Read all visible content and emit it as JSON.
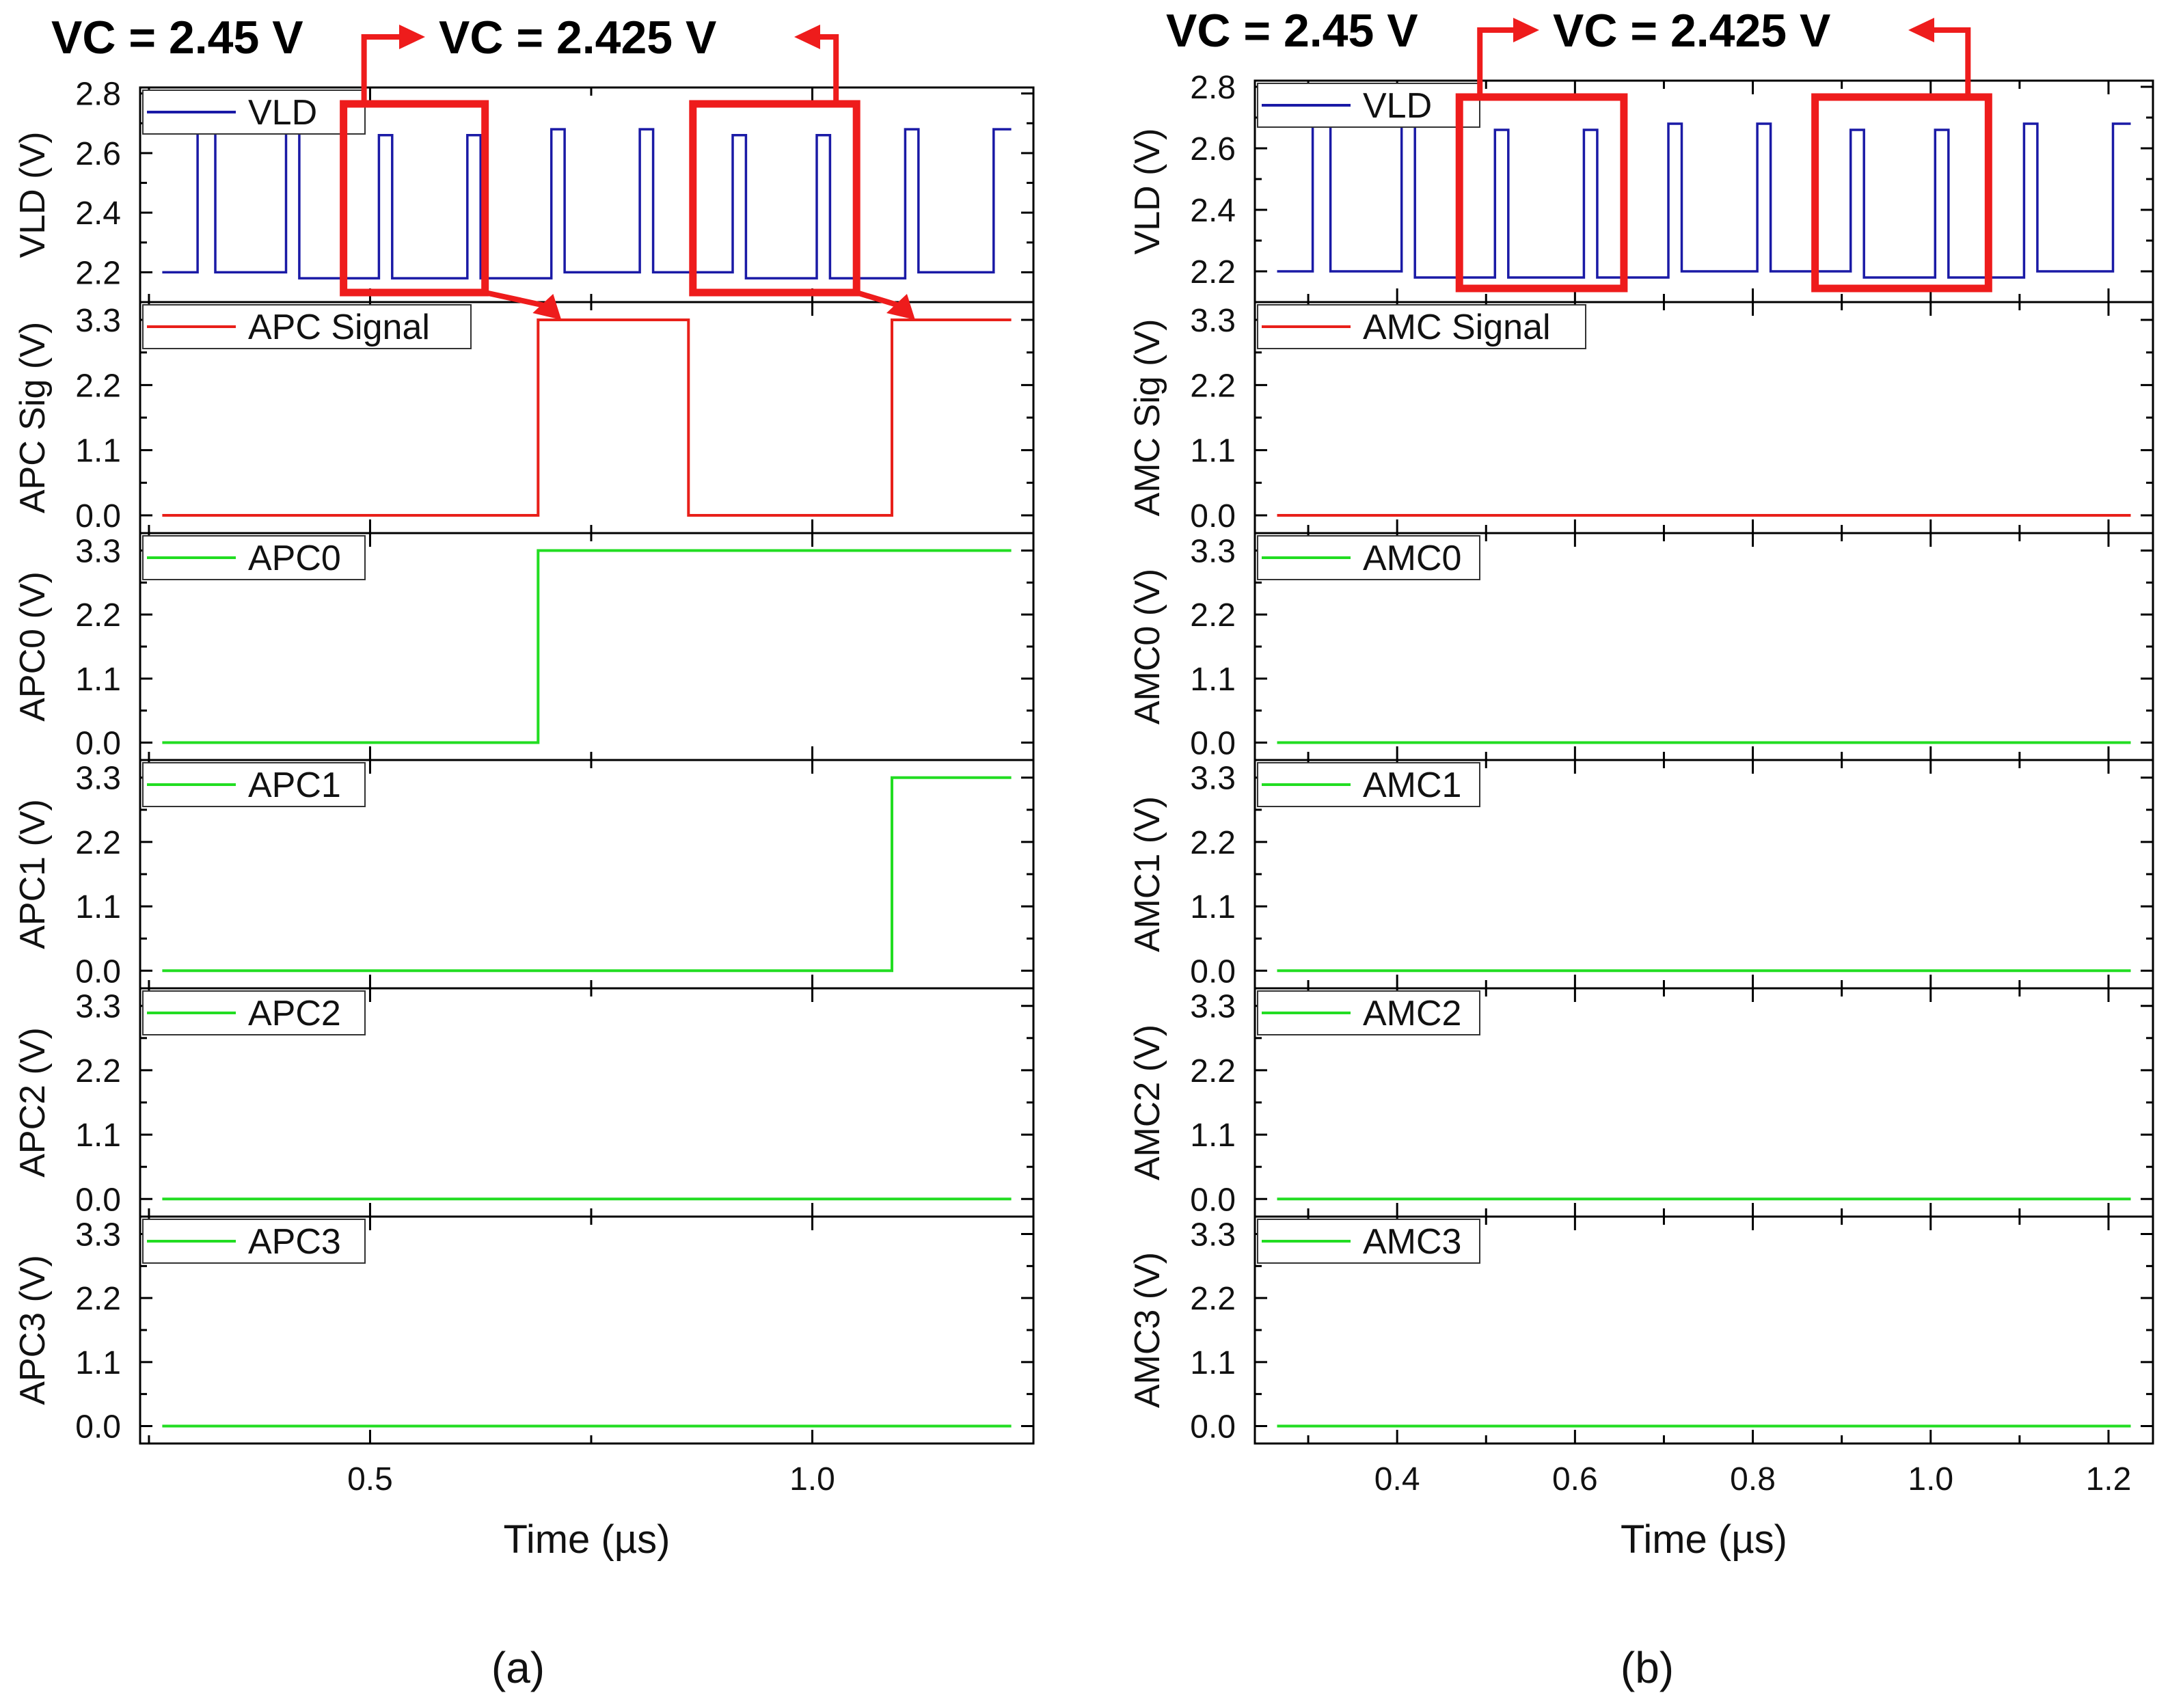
{
  "figure": {
    "colors": {
      "vld": "#1a1aa6",
      "signal": "#e8201a",
      "digital": "#22dd22",
      "highlight": "#ee1c1c",
      "axis": "#000000"
    }
  },
  "chart_data": [
    {
      "type": "line",
      "panel_label": "(a)",
      "annotation_left": "VC = 2.45 V",
      "annotation_right": "VC = 2.425 V",
      "xlabel": "Time (µs)",
      "xlim": [
        0.24,
        1.25
      ],
      "xticks": [
        0.5,
        1.0
      ],
      "xtick_labels": [
        "0.5",
        "1.0"
      ],
      "highlight_windows": [
        [
          0.47,
          0.63
        ],
        [
          0.865,
          1.05
        ]
      ],
      "subplots": [
        {
          "ylabel": "VLD (V)",
          "ylim": [
            2.1,
            2.82
          ],
          "yticks": [
            2.2,
            2.4,
            2.6,
            2.8
          ],
          "ytick_labels": [
            "2.2",
            "2.4",
            "2.6",
            "2.8"
          ],
          "legend": "VLD",
          "color_key": "vld",
          "x": [
            0.265,
            0.305,
            0.305,
            0.325,
            0.325,
            0.405,
            0.405,
            0.42,
            0.42,
            0.51,
            0.51,
            0.525,
            0.525,
            0.61,
            0.61,
            0.625,
            0.625,
            0.705,
            0.705,
            0.72,
            0.72,
            0.805,
            0.805,
            0.82,
            0.82,
            0.91,
            0.91,
            0.925,
            0.925,
            1.005,
            1.005,
            1.02,
            1.02,
            1.105,
            1.105,
            1.12,
            1.12,
            1.205,
            1.205,
            1.225
          ],
          "y": [
            2.2,
            2.2,
            2.68,
            2.68,
            2.2,
            2.2,
            2.68,
            2.68,
            2.18,
            2.18,
            2.66,
            2.66,
            2.18,
            2.18,
            2.66,
            2.66,
            2.18,
            2.18,
            2.68,
            2.68,
            2.2,
            2.2,
            2.68,
            2.68,
            2.2,
            2.2,
            2.66,
            2.66,
            2.18,
            2.18,
            2.66,
            2.66,
            2.18,
            2.18,
            2.68,
            2.68,
            2.2,
            2.2,
            2.68,
            2.68
          ]
        },
        {
          "ylabel": "APC Sig (V)",
          "ylim": [
            -0.3,
            3.6
          ],
          "yticks": [
            0.0,
            1.1,
            2.2,
            3.3
          ],
          "ytick_labels": [
            "0.0",
            "1.1",
            "2.2",
            "3.3"
          ],
          "legend": "APC Signal",
          "color_key": "signal",
          "x": [
            0.265,
            0.69,
            0.69,
            0.86,
            0.86,
            1.09,
            1.09,
            1.225
          ],
          "y": [
            0.0,
            0.0,
            3.3,
            3.3,
            0.0,
            0.0,
            3.3,
            3.3
          ]
        },
        {
          "ylabel": "APC0 (V)",
          "ylim": [
            -0.3,
            3.6
          ],
          "yticks": [
            0.0,
            1.1,
            2.2,
            3.3
          ],
          "ytick_labels": [
            "0.0",
            "1.1",
            "2.2",
            "3.3"
          ],
          "legend": "APC0",
          "color_key": "digital",
          "x": [
            0.265,
            0.69,
            0.69,
            1.225
          ],
          "y": [
            0.0,
            0.0,
            3.3,
            3.3
          ]
        },
        {
          "ylabel": "APC1 (V)",
          "ylim": [
            -0.3,
            3.6
          ],
          "yticks": [
            0.0,
            1.1,
            2.2,
            3.3
          ],
          "ytick_labels": [
            "0.0",
            "1.1",
            "2.2",
            "3.3"
          ],
          "legend": "APC1",
          "color_key": "digital",
          "x": [
            0.265,
            1.09,
            1.09,
            1.225
          ],
          "y": [
            0.0,
            0.0,
            3.3,
            3.3
          ]
        },
        {
          "ylabel": "APC2 (V)",
          "ylim": [
            -0.3,
            3.6
          ],
          "yticks": [
            0.0,
            1.1,
            2.2,
            3.3
          ],
          "ytick_labels": [
            "0.0",
            "1.1",
            "2.2",
            "3.3"
          ],
          "legend": "APC2",
          "color_key": "digital",
          "x": [
            0.265,
            1.225
          ],
          "y": [
            0.0,
            0.0
          ]
        },
        {
          "ylabel": "APC3 (V)",
          "ylim": [
            -0.3,
            3.6
          ],
          "yticks": [
            0.0,
            1.1,
            2.2,
            3.3
          ],
          "ytick_labels": [
            "0.0",
            "1.1",
            "2.2",
            "3.3"
          ],
          "legend": "APC3",
          "color_key": "digital",
          "x": [
            0.265,
            1.225
          ],
          "y": [
            0.0,
            0.0
          ]
        }
      ]
    },
    {
      "type": "line",
      "panel_label": "(b)",
      "annotation_left": "VC = 2.45 V",
      "annotation_right": "VC = 2.425 V",
      "xlabel": "Time (µs)",
      "xlim": [
        0.24,
        1.25
      ],
      "xticks": [
        0.4,
        0.6,
        0.8,
        1.0,
        1.2
      ],
      "xtick_labels": [
        "0.4",
        "0.6",
        "0.8",
        "1.0",
        "1.2"
      ],
      "highlight_windows": [
        [
          0.47,
          0.655
        ],
        [
          0.87,
          1.065
        ]
      ],
      "subplots": [
        {
          "ylabel": "VLD (V)",
          "ylim": [
            2.1,
            2.82
          ],
          "yticks": [
            2.2,
            2.4,
            2.6,
            2.8
          ],
          "ytick_labels": [
            "2.2",
            "2.4",
            "2.6",
            "2.8"
          ],
          "legend": "VLD",
          "color_key": "vld",
          "x": [
            0.265,
            0.305,
            0.305,
            0.325,
            0.325,
            0.405,
            0.405,
            0.42,
            0.42,
            0.51,
            0.51,
            0.525,
            0.525,
            0.61,
            0.61,
            0.625,
            0.625,
            0.705,
            0.705,
            0.72,
            0.72,
            0.805,
            0.805,
            0.82,
            0.82,
            0.91,
            0.91,
            0.925,
            0.925,
            1.005,
            1.005,
            1.02,
            1.02,
            1.105,
            1.105,
            1.12,
            1.12,
            1.205,
            1.205,
            1.225
          ],
          "y": [
            2.2,
            2.2,
            2.68,
            2.68,
            2.2,
            2.2,
            2.68,
            2.68,
            2.18,
            2.18,
            2.66,
            2.66,
            2.18,
            2.18,
            2.66,
            2.66,
            2.18,
            2.18,
            2.68,
            2.68,
            2.2,
            2.2,
            2.68,
            2.68,
            2.2,
            2.2,
            2.66,
            2.66,
            2.18,
            2.18,
            2.66,
            2.66,
            2.18,
            2.18,
            2.68,
            2.68,
            2.2,
            2.2,
            2.68,
            2.68
          ]
        },
        {
          "ylabel": "AMC Sig (V)",
          "ylim": [
            -0.3,
            3.6
          ],
          "yticks": [
            0.0,
            1.1,
            2.2,
            3.3
          ],
          "ytick_labels": [
            "0.0",
            "1.1",
            "2.2",
            "3.3"
          ],
          "legend": "AMC Signal",
          "color_key": "signal",
          "x": [
            0.265,
            1.225
          ],
          "y": [
            0.0,
            0.0
          ]
        },
        {
          "ylabel": "AMC0 (V)",
          "ylim": [
            -0.3,
            3.6
          ],
          "yticks": [
            0.0,
            1.1,
            2.2,
            3.3
          ],
          "ytick_labels": [
            "0.0",
            "1.1",
            "2.2",
            "3.3"
          ],
          "legend": "AMC0",
          "color_key": "digital",
          "x": [
            0.265,
            1.225
          ],
          "y": [
            0.0,
            0.0
          ]
        },
        {
          "ylabel": "AMC1 (V)",
          "ylim": [
            -0.3,
            3.6
          ],
          "yticks": [
            0.0,
            1.1,
            2.2,
            3.3
          ],
          "ytick_labels": [
            "0.0",
            "1.1",
            "2.2",
            "3.3"
          ],
          "legend": "AMC1",
          "color_key": "digital",
          "x": [
            0.265,
            1.225
          ],
          "y": [
            0.0,
            0.0
          ]
        },
        {
          "ylabel": "AMC2 (V)",
          "ylim": [
            -0.3,
            3.6
          ],
          "yticks": [
            0.0,
            1.1,
            2.2,
            3.3
          ],
          "ytick_labels": [
            "0.0",
            "1.1",
            "2.2",
            "3.3"
          ],
          "legend": "AMC2",
          "color_key": "digital",
          "x": [
            0.265,
            1.225
          ],
          "y": [
            0.0,
            0.0
          ]
        },
        {
          "ylabel": "AMC3 (V)",
          "ylim": [
            -0.3,
            3.6
          ],
          "yticks": [
            0.0,
            1.1,
            2.2,
            3.3
          ],
          "ytick_labels": [
            "0.0",
            "1.1",
            "2.2",
            "3.3"
          ],
          "legend": "AMC3",
          "color_key": "digital",
          "x": [
            0.265,
            1.225
          ],
          "y": [
            0.0,
            0.0
          ]
        }
      ]
    }
  ]
}
